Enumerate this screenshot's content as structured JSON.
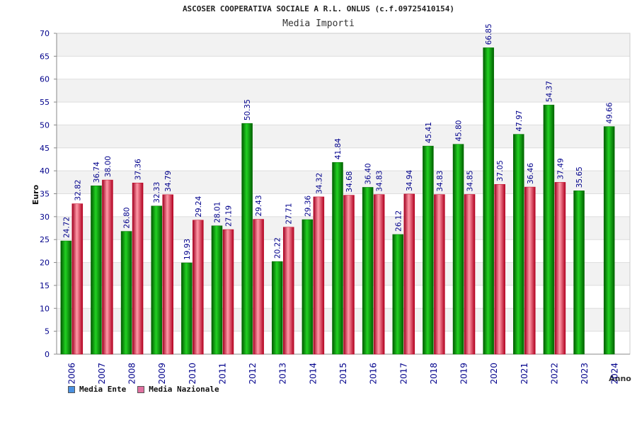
{
  "chart_data": {
    "type": "bar",
    "title": "ASCOSER COOPERATIVA SOCIALE A R.L. ONLUS (c.f.09725410154)",
    "subtitle": "Media Importi",
    "xlabel": "Anno",
    "ylabel": "Euro",
    "ylim": [
      0,
      70
    ],
    "yticks": [
      0,
      5,
      10,
      15,
      20,
      25,
      30,
      35,
      40,
      45,
      50,
      55,
      60,
      65,
      70
    ],
    "categories": [
      "2006",
      "2007",
      "2008",
      "2009",
      "2010",
      "2011",
      "2012",
      "2013",
      "2014",
      "2015",
      "2016",
      "2017",
      "2018",
      "2019",
      "2020",
      "2021",
      "2022",
      "2023",
      "2024"
    ],
    "series": [
      {
        "name": "Media Ente",
        "color": "#00a000",
        "values": [
          24.72,
          36.74,
          26.8,
          32.33,
          19.93,
          28.01,
          50.35,
          20.22,
          29.36,
          41.84,
          36.4,
          26.12,
          45.41,
          45.8,
          66.85,
          47.97,
          54.37,
          35.65,
          49.66
        ],
        "labels": [
          "24.72",
          "36.74",
          "26.80",
          "32.33",
          "19.93",
          "28.01",
          "50.35",
          "20.22",
          "29.36",
          "41.84",
          "36.40",
          "26.12",
          "45.41",
          "45.80",
          "66.85",
          "47.97",
          "54.37",
          "35.65",
          "49.66"
        ]
      },
      {
        "name": "Media Nazionale",
        "color": "#e02040",
        "values": [
          32.82,
          38.0,
          37.36,
          34.79,
          29.24,
          27.19,
          29.43,
          27.71,
          34.32,
          34.68,
          34.83,
          34.94,
          34.83,
          34.85,
          37.05,
          36.46,
          37.49,
          null,
          null
        ],
        "labels": [
          "32.82",
          "38.00",
          "37.36",
          "34.79",
          "29.24",
          "27.19",
          "29.43",
          "27.71",
          "34.32",
          "34.68",
          "34.83",
          "34.94",
          "34.83",
          "34.85",
          "37.05",
          "36.46",
          "37.49",
          null,
          null
        ]
      }
    ],
    "legend": [
      {
        "label": "Media Ente",
        "color": "#4a90e0"
      },
      {
        "label": "Media Nazionale",
        "color": "#e070a0"
      }
    ],
    "legend_position": "bottom-left",
    "grid": true
  }
}
